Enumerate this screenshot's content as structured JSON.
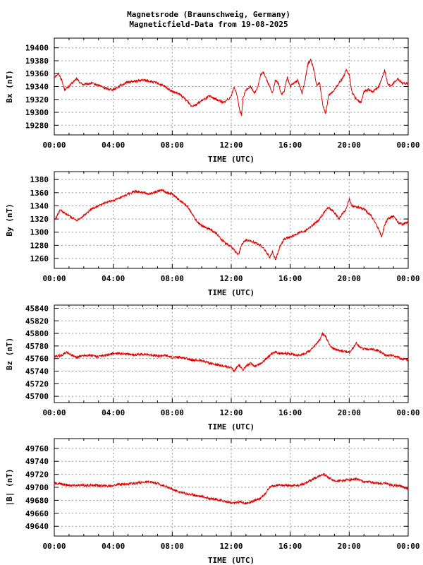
{
  "title_line1": "Magnetsrode (Braunschweig, Germany)",
  "title_line2": "Magneticfield-Data from 19-08-2025",
  "series_color": "#e00000",
  "chart_data": [
    {
      "type": "line",
      "ylabel": "Bx (nT)",
      "xlabel": "TIME (UTC)",
      "xlim": [
        "00:00",
        "24:00"
      ],
      "ylim": [
        19265,
        19415
      ],
      "yticks": [
        "19280",
        "19300",
        "19320",
        "19340",
        "19360",
        "19380",
        "19400"
      ],
      "xticks": [
        "00:00",
        "04:00",
        "08:00",
        "12:00",
        "16:00",
        "20:00",
        "00:00"
      ],
      "grid": true,
      "series": [
        {
          "x": [
            0,
            0.3,
            0.5,
            0.7,
            1.0,
            1.5,
            1.8,
            2.0,
            2.5,
            3.0,
            3.5,
            4.0,
            4.5,
            5.0,
            5.5,
            6.0,
            6.5,
            7.0,
            7.5,
            8.0,
            8.5,
            9.0,
            9.3,
            9.6,
            10.0,
            10.5,
            11.0,
            11.5,
            12.0,
            12.2,
            12.4,
            12.6,
            12.7,
            12.8,
            13.0,
            13.3,
            13.6,
            13.8,
            14.0,
            14.2,
            14.5,
            14.8,
            15.0,
            15.2,
            15.4,
            15.6,
            15.8,
            16.0,
            16.2,
            16.5,
            16.8,
            17.0,
            17.2,
            17.4,
            17.6,
            17.8,
            18.0,
            18.2,
            18.4,
            18.6,
            18.8,
            19.0,
            19.3,
            19.6,
            19.8,
            20.0,
            20.2,
            20.5,
            20.8,
            21.0,
            21.3,
            21.6,
            22.0,
            22.2,
            22.4,
            22.6,
            22.8,
            23.0,
            23.3,
            23.6,
            24.0
          ],
          "y": [
            19355,
            19360,
            19350,
            19335,
            19340,
            19352,
            19345,
            19343,
            19345,
            19342,
            19337,
            19335,
            19342,
            19347,
            19348,
            19350,
            19348,
            19345,
            19340,
            19332,
            19328,
            19318,
            19310,
            19312,
            19318,
            19325,
            19320,
            19315,
            19325,
            19340,
            19325,
            19300,
            19295,
            19322,
            19335,
            19340,
            19330,
            19340,
            19358,
            19362,
            19345,
            19330,
            19350,
            19345,
            19328,
            19332,
            19355,
            19340,
            19345,
            19350,
            19330,
            19348,
            19375,
            19382,
            19365,
            19342,
            19345,
            19312,
            19298,
            19325,
            19330,
            19335,
            19345,
            19355,
            19365,
            19358,
            19330,
            19320,
            19315,
            19332,
            19335,
            19332,
            19340,
            19352,
            19365,
            19345,
            19340,
            19345,
            19352,
            19345,
            19345
          ]
        }
      ]
    },
    {
      "type": "line",
      "ylabel": "By (nT)",
      "xlabel": "TIME (UTC)",
      "xlim": [
        "00:00",
        "24:00"
      ],
      "ylim": [
        1245,
        1392
      ],
      "yticks": [
        "1260",
        "1280",
        "1300",
        "1320",
        "1340",
        "1360",
        "1380"
      ],
      "xticks": [
        "00:00",
        "04:00",
        "08:00",
        "12:00",
        "16:00",
        "20:00",
        "00:00"
      ],
      "grid": true,
      "series": [
        {
          "x": [
            0,
            0.2,
            0.4,
            0.6,
            1.0,
            1.5,
            2.0,
            2.5,
            3.0,
            3.5,
            4.0,
            4.5,
            5.0,
            5.5,
            6.0,
            6.5,
            7.0,
            7.3,
            7.6,
            8.0,
            8.5,
            9.0,
            9.3,
            9.6,
            10.0,
            10.5,
            11.0,
            11.5,
            12.0,
            12.3,
            12.5,
            12.7,
            13.0,
            13.5,
            14.0,
            14.3,
            14.6,
            14.8,
            15.0,
            15.3,
            15.6,
            16.0,
            16.5,
            17.0,
            17.5,
            18.0,
            18.3,
            18.6,
            19.0,
            19.3,
            19.6,
            19.8,
            20.0,
            20.2,
            20.5,
            21.0,
            21.5,
            22.0,
            22.2,
            22.4,
            22.6,
            23.0,
            23.3,
            23.6,
            24.0
          ],
          "y": [
            1318,
            1325,
            1335,
            1330,
            1325,
            1318,
            1325,
            1335,
            1340,
            1345,
            1348,
            1352,
            1358,
            1362,
            1360,
            1358,
            1362,
            1365,
            1360,
            1358,
            1348,
            1340,
            1330,
            1318,
            1310,
            1305,
            1298,
            1285,
            1278,
            1270,
            1265,
            1282,
            1288,
            1285,
            1280,
            1272,
            1262,
            1270,
            1258,
            1278,
            1290,
            1292,
            1298,
            1302,
            1310,
            1320,
            1330,
            1338,
            1330,
            1320,
            1330,
            1335,
            1350,
            1340,
            1338,
            1335,
            1325,
            1305,
            1292,
            1310,
            1320,
            1325,
            1315,
            1312,
            1315
          ]
        }
      ]
    },
    {
      "type": "line",
      "ylabel": "Bz (nT)",
      "xlabel": "TIME (UTC)",
      "xlim": [
        "00:00",
        "24:00"
      ],
      "ylim": [
        45690,
        45845
      ],
      "yticks": [
        "45700",
        "45720",
        "45740",
        "45760",
        "45780",
        "45800",
        "45820",
        "45840"
      ],
      "xticks": [
        "00:00",
        "04:00",
        "08:00",
        "12:00",
        "16:00",
        "20:00",
        "00:00"
      ],
      "grid": true,
      "series": [
        {
          "x": [
            0,
            0.5,
            0.8,
            1.0,
            1.5,
            2.0,
            2.5,
            3.0,
            3.5,
            4.0,
            4.5,
            5.0,
            5.5,
            6.0,
            6.5,
            7.0,
            7.5,
            8.0,
            8.5,
            9.0,
            9.5,
            10.0,
            10.5,
            11.0,
            11.5,
            12.0,
            12.2,
            12.5,
            12.8,
            13.0,
            13.3,
            13.6,
            14.0,
            14.3,
            14.6,
            15.0,
            15.5,
            16.0,
            16.5,
            17.0,
            17.3,
            17.6,
            18.0,
            18.2,
            18.4,
            18.6,
            18.8,
            19.0,
            19.5,
            20.0,
            20.3,
            20.5,
            20.7,
            21.0,
            21.5,
            22.0,
            22.5,
            23.0,
            23.5,
            24.0
          ],
          "y": [
            45763,
            45765,
            45770,
            45768,
            45762,
            45765,
            45765,
            45763,
            45765,
            45768,
            45768,
            45767,
            45766,
            45767,
            45766,
            45764,
            45765,
            45762,
            45762,
            45760,
            45757,
            45757,
            45753,
            45750,
            45748,
            45745,
            45740,
            45750,
            45742,
            45748,
            45752,
            45748,
            45752,
            45758,
            45765,
            45770,
            45768,
            45768,
            45765,
            45768,
            45772,
            45778,
            45790,
            45800,
            45795,
            45785,
            45778,
            45775,
            45772,
            45770,
            45778,
            45785,
            45778,
            45775,
            45775,
            45772,
            45765,
            45765,
            45760,
            45757
          ]
        }
      ]
    },
    {
      "type": "line",
      "ylabel": "|B| (nT)",
      "xlabel": "TIME (UTC)",
      "xlim": [
        "00:00",
        "24:00"
      ],
      "ylim": [
        49625,
        49775
      ],
      "yticks": [
        "49640",
        "49660",
        "49680",
        "49700",
        "49720",
        "49740",
        "49760"
      ],
      "xticks": [
        "00:00",
        "04:00",
        "08:00",
        "12:00",
        "16:00",
        "20:00",
        "00:00"
      ],
      "grid": true,
      "series": [
        {
          "x": [
            0,
            0.5,
            1.0,
            1.5,
            2.0,
            2.5,
            3.0,
            3.5,
            4.0,
            4.5,
            5.0,
            5.5,
            6.0,
            6.5,
            7.0,
            7.5,
            8.0,
            8.5,
            9.0,
            9.5,
            10.0,
            10.5,
            11.0,
            11.5,
            12.0,
            12.3,
            12.6,
            13.0,
            13.3,
            13.6,
            14.0,
            14.3,
            14.6,
            15.0,
            15.5,
            16.0,
            16.5,
            17.0,
            17.5,
            18.0,
            18.3,
            18.6,
            19.0,
            19.5,
            20.0,
            20.5,
            21.0,
            21.5,
            22.0,
            22.5,
            23.0,
            23.5,
            24.0
          ],
          "y": [
            49706,
            49705,
            49703,
            49703,
            49703,
            49703,
            49703,
            49702,
            49703,
            49705,
            49705,
            49706,
            49708,
            49708,
            49706,
            49702,
            49697,
            49693,
            49690,
            49688,
            49686,
            49683,
            49681,
            49679,
            49676,
            49676,
            49678,
            49675,
            49677,
            49680,
            49683,
            49690,
            49700,
            49703,
            49703,
            49703,
            49703,
            49706,
            49712,
            49718,
            49720,
            49715,
            49710,
            49710,
            49712,
            49713,
            49708,
            49708,
            49706,
            49706,
            49703,
            49702,
            49697
          ]
        }
      ]
    }
  ]
}
